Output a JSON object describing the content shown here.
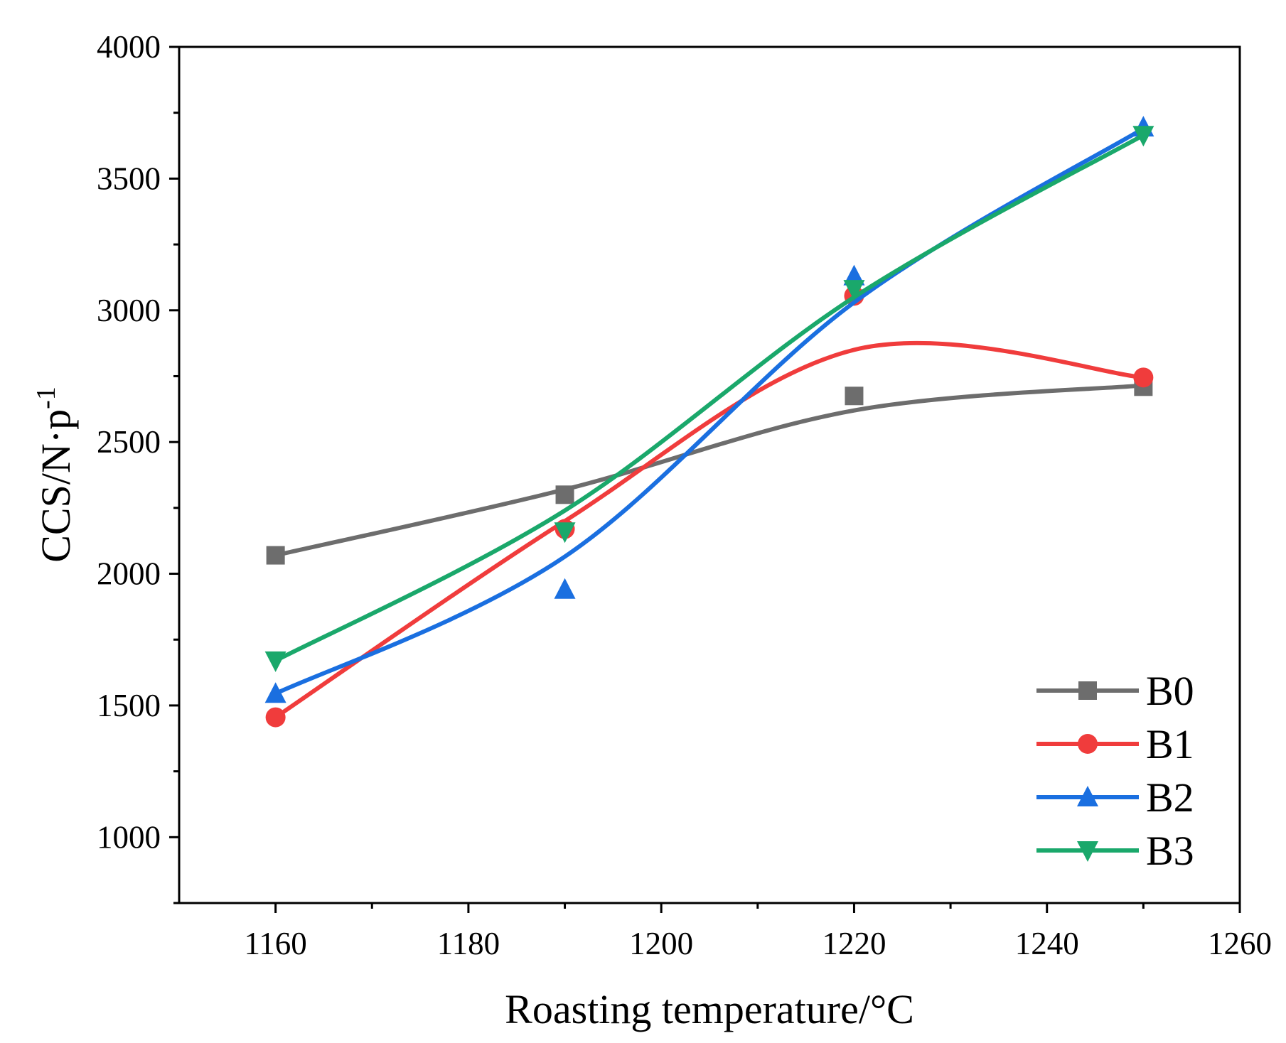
{
  "chart_data": {
    "type": "line",
    "title": "",
    "xlabel": "Roasting temperature/°C",
    "ylabel_main": "CCS/N·p",
    "ylabel_sup": "-1",
    "xlim": [
      1150,
      1260
    ],
    "ylim": [
      750,
      4000
    ],
    "xticks": [
      1160,
      1180,
      1200,
      1220,
      1240,
      1260
    ],
    "yticks": [
      1000,
      1500,
      2000,
      2500,
      3000,
      3500,
      4000
    ],
    "x": [
      1160,
      1190,
      1220,
      1250
    ],
    "legend_position": "bottom-right",
    "series": [
      {
        "name": "B0",
        "color": "#6d6d6d",
        "marker": "square",
        "values": [
          2070,
          2300,
          2675,
          2710
        ],
        "curve": [
          2070,
          2320,
          2620,
          2715
        ]
      },
      {
        "name": "B1",
        "color": "#f03c3c",
        "marker": "circle",
        "values": [
          1455,
          2170,
          3055,
          2745
        ],
        "curve": [
          1455,
          2200,
          2850,
          2745
        ]
      },
      {
        "name": "B2",
        "color": "#1a6fe0",
        "marker": "triangle-up",
        "values": [
          1545,
          1940,
          3130,
          3695
        ],
        "curve": [
          1545,
          2065,
          3030,
          3690
        ]
      },
      {
        "name": "B3",
        "color": "#1aa86b",
        "marker": "triangle-down",
        "values": [
          1670,
          2160,
          3080,
          3665
        ],
        "curve": [
          1670,
          2240,
          3050,
          3665
        ]
      }
    ]
  }
}
